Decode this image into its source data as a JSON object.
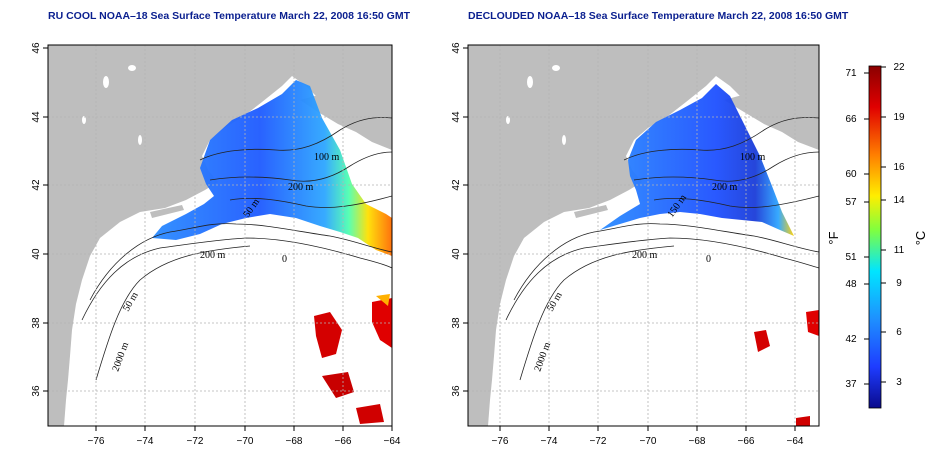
{
  "panels": [
    {
      "title": "RU COOL NOAA–18 Sea Surface Temperature March 22, 2008 16:50 GMT",
      "contour_labels": [
        "100 m",
        "200 m",
        "200 m",
        "50 m",
        "50 m",
        "2000 m",
        "0"
      ]
    },
    {
      "title": "DECLOUDED NOAA–18 Sea Surface Temperature March 22, 2008 16:50 GMT",
      "contour_labels": [
        "100 m",
        "200 m",
        "200 m",
        "150 m",
        "50 m",
        "2000 m",
        "0"
      ]
    }
  ],
  "axes": {
    "x_ticks": [
      "−76",
      "−74",
      "−72",
      "−70",
      "−68",
      "−66",
      "−64"
    ],
    "y_ticks": [
      "36",
      "38",
      "40",
      "42",
      "44",
      "46"
    ]
  },
  "colorbar": {
    "f_label": "°F",
    "c_label": "°C",
    "f_ticks": [
      "71",
      "66",
      "60",
      "57",
      "51",
      "48",
      "42",
      "37"
    ],
    "c_ticks": [
      "22",
      "19",
      "16",
      "14",
      "11",
      "9",
      "6",
      "3"
    ],
    "colors": [
      "#0a0a8c",
      "#1e3cff",
      "#1e90ff",
      "#00e5ff",
      "#7fff3f",
      "#ffee00",
      "#ff7f00",
      "#e00000",
      "#8b0000"
    ]
  },
  "map_colors": {
    "land": "#bebebe",
    "water": "#ffffff",
    "grid": "#b4b4b4"
  }
}
